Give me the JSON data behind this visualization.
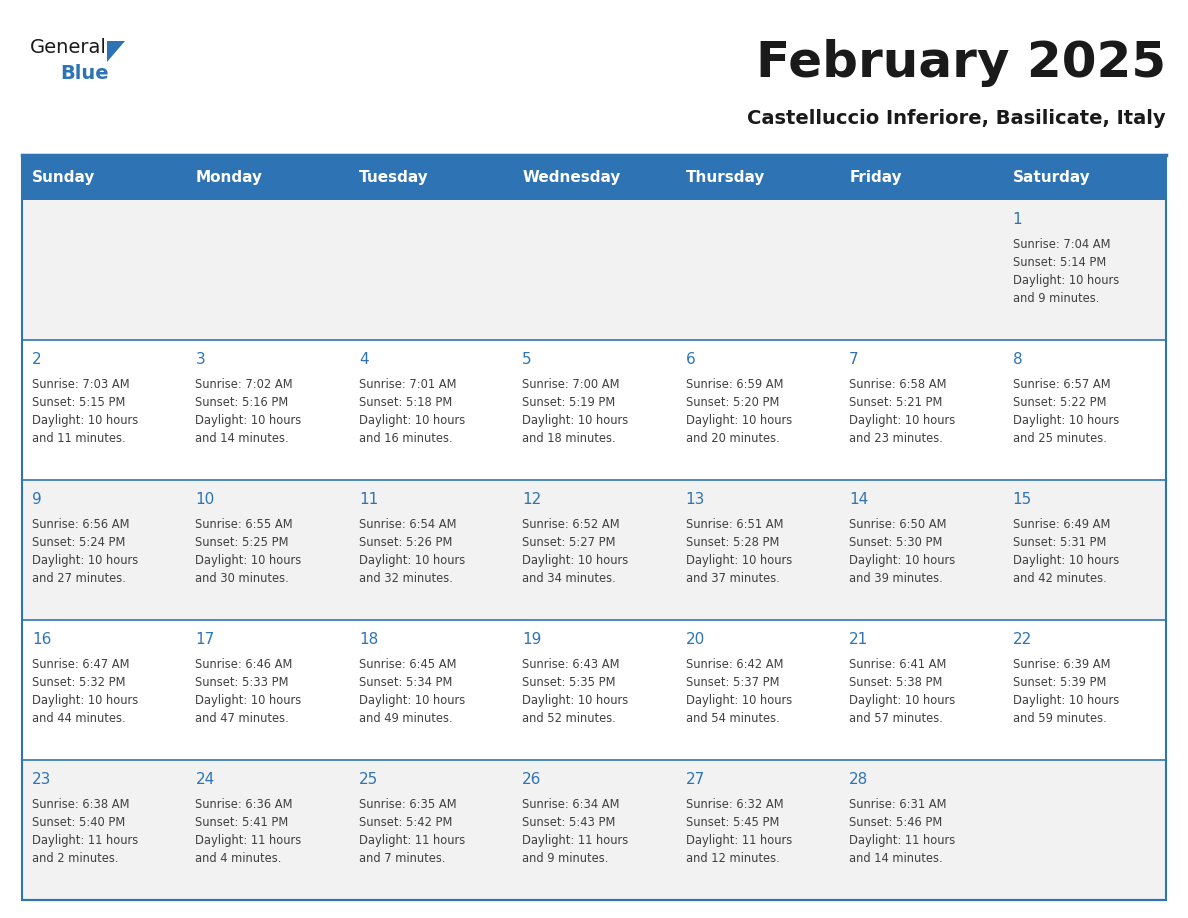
{
  "title": "February 2025",
  "subtitle": "Castelluccio Inferiore, Basilicate, Italy",
  "header_bg_color": "#2E74B5",
  "header_text_color": "#FFFFFF",
  "header_days": [
    "Sunday",
    "Monday",
    "Tuesday",
    "Wednesday",
    "Thursday",
    "Friday",
    "Saturday"
  ],
  "bg_color": "#FFFFFF",
  "row_separator_color": "#2E74B5",
  "day_number_color": "#2E74B5",
  "info_text_color": "#404040",
  "row_bg_colors": [
    "#F2F2F2",
    "#FFFFFF",
    "#F2F2F2",
    "#FFFFFF",
    "#F2F2F2"
  ],
  "calendar": [
    [
      null,
      null,
      null,
      null,
      null,
      null,
      1
    ],
    [
      2,
      3,
      4,
      5,
      6,
      7,
      8
    ],
    [
      9,
      10,
      11,
      12,
      13,
      14,
      15
    ],
    [
      16,
      17,
      18,
      19,
      20,
      21,
      22
    ],
    [
      23,
      24,
      25,
      26,
      27,
      28,
      null
    ]
  ],
  "day_data": {
    "1": {
      "sunrise": "7:04 AM",
      "sunset": "5:14 PM",
      "daylight": "10 hours and 9 minutes"
    },
    "2": {
      "sunrise": "7:03 AM",
      "sunset": "5:15 PM",
      "daylight": "10 hours and 11 minutes"
    },
    "3": {
      "sunrise": "7:02 AM",
      "sunset": "5:16 PM",
      "daylight": "10 hours and 14 minutes"
    },
    "4": {
      "sunrise": "7:01 AM",
      "sunset": "5:18 PM",
      "daylight": "10 hours and 16 minutes"
    },
    "5": {
      "sunrise": "7:00 AM",
      "sunset": "5:19 PM",
      "daylight": "10 hours and 18 minutes"
    },
    "6": {
      "sunrise": "6:59 AM",
      "sunset": "5:20 PM",
      "daylight": "10 hours and 20 minutes"
    },
    "7": {
      "sunrise": "6:58 AM",
      "sunset": "5:21 PM",
      "daylight": "10 hours and 23 minutes"
    },
    "8": {
      "sunrise": "6:57 AM",
      "sunset": "5:22 PM",
      "daylight": "10 hours and 25 minutes"
    },
    "9": {
      "sunrise": "6:56 AM",
      "sunset": "5:24 PM",
      "daylight": "10 hours and 27 minutes"
    },
    "10": {
      "sunrise": "6:55 AM",
      "sunset": "5:25 PM",
      "daylight": "10 hours and 30 minutes"
    },
    "11": {
      "sunrise": "6:54 AM",
      "sunset": "5:26 PM",
      "daylight": "10 hours and 32 minutes"
    },
    "12": {
      "sunrise": "6:52 AM",
      "sunset": "5:27 PM",
      "daylight": "10 hours and 34 minutes"
    },
    "13": {
      "sunrise": "6:51 AM",
      "sunset": "5:28 PM",
      "daylight": "10 hours and 37 minutes"
    },
    "14": {
      "sunrise": "6:50 AM",
      "sunset": "5:30 PM",
      "daylight": "10 hours and 39 minutes"
    },
    "15": {
      "sunrise": "6:49 AM",
      "sunset": "5:31 PM",
      "daylight": "10 hours and 42 minutes"
    },
    "16": {
      "sunrise": "6:47 AM",
      "sunset": "5:32 PM",
      "daylight": "10 hours and 44 minutes"
    },
    "17": {
      "sunrise": "6:46 AM",
      "sunset": "5:33 PM",
      "daylight": "10 hours and 47 minutes"
    },
    "18": {
      "sunrise": "6:45 AM",
      "sunset": "5:34 PM",
      "daylight": "10 hours and 49 minutes"
    },
    "19": {
      "sunrise": "6:43 AM",
      "sunset": "5:35 PM",
      "daylight": "10 hours and 52 minutes"
    },
    "20": {
      "sunrise": "6:42 AM",
      "sunset": "5:37 PM",
      "daylight": "10 hours and 54 minutes"
    },
    "21": {
      "sunrise": "6:41 AM",
      "sunset": "5:38 PM",
      "daylight": "10 hours and 57 minutes"
    },
    "22": {
      "sunrise": "6:39 AM",
      "sunset": "5:39 PM",
      "daylight": "10 hours and 59 minutes"
    },
    "23": {
      "sunrise": "6:38 AM",
      "sunset": "5:40 PM",
      "daylight": "11 hours and 2 minutes"
    },
    "24": {
      "sunrise": "6:36 AM",
      "sunset": "5:41 PM",
      "daylight": "11 hours and 4 minutes"
    },
    "25": {
      "sunrise": "6:35 AM",
      "sunset": "5:42 PM",
      "daylight": "11 hours and 7 minutes"
    },
    "26": {
      "sunrise": "6:34 AM",
      "sunset": "5:43 PM",
      "daylight": "11 hours and 9 minutes"
    },
    "27": {
      "sunrise": "6:32 AM",
      "sunset": "5:45 PM",
      "daylight": "11 hours and 12 minutes"
    },
    "28": {
      "sunrise": "6:31 AM",
      "sunset": "5:46 PM",
      "daylight": "11 hours and 14 minutes"
    }
  },
  "logo_text_general": "General",
  "logo_text_blue": "Blue",
  "logo_triangle_color": "#2E74B5"
}
